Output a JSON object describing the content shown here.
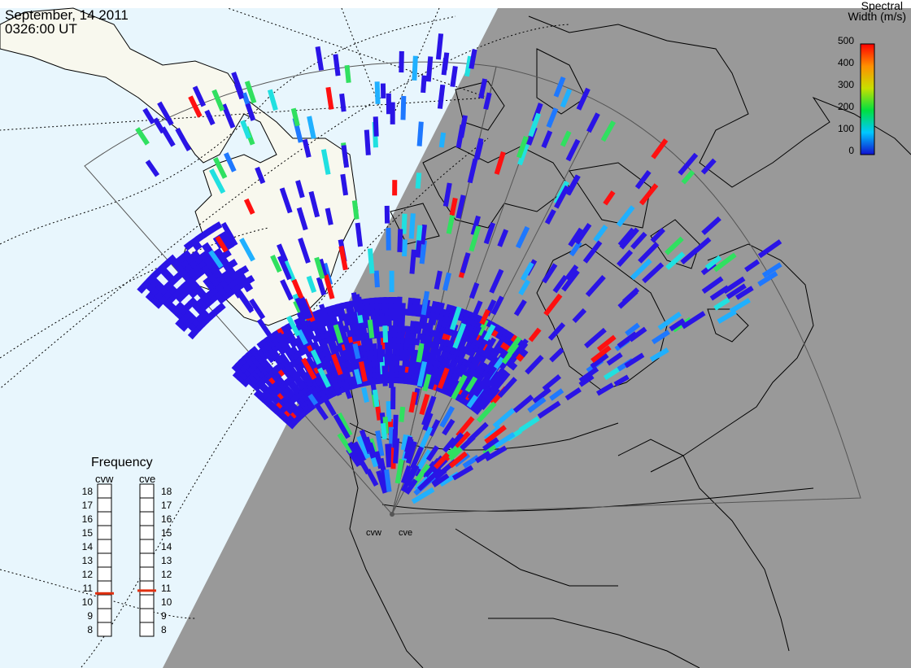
{
  "header": {
    "date": "September, 14 2011",
    "time": "0326:00 UT"
  },
  "colorbar": {
    "title_line1": "Spectral",
    "title_line2": "Width (m/s)",
    "ticks": [
      "500",
      "400",
      "300",
      "200",
      "100",
      "0"
    ]
  },
  "frequency": {
    "title": "Frequency",
    "radars": [
      {
        "name": "cvw",
        "value": 10.6
      },
      {
        "name": "cve",
        "value": 10.8
      }
    ],
    "scale": [
      "18",
      "17",
      "16",
      "15",
      "14",
      "13",
      "12",
      "11",
      "10",
      "9",
      "8"
    ]
  },
  "stations": [
    {
      "label": "cvw"
    },
    {
      "label": "cve"
    }
  ],
  "colors": {
    "ocean": "#e8f6fd",
    "land": "#f8f8ee",
    "night": "#999999",
    "low": "#2a14e6",
    "high": "#ff1010"
  }
}
